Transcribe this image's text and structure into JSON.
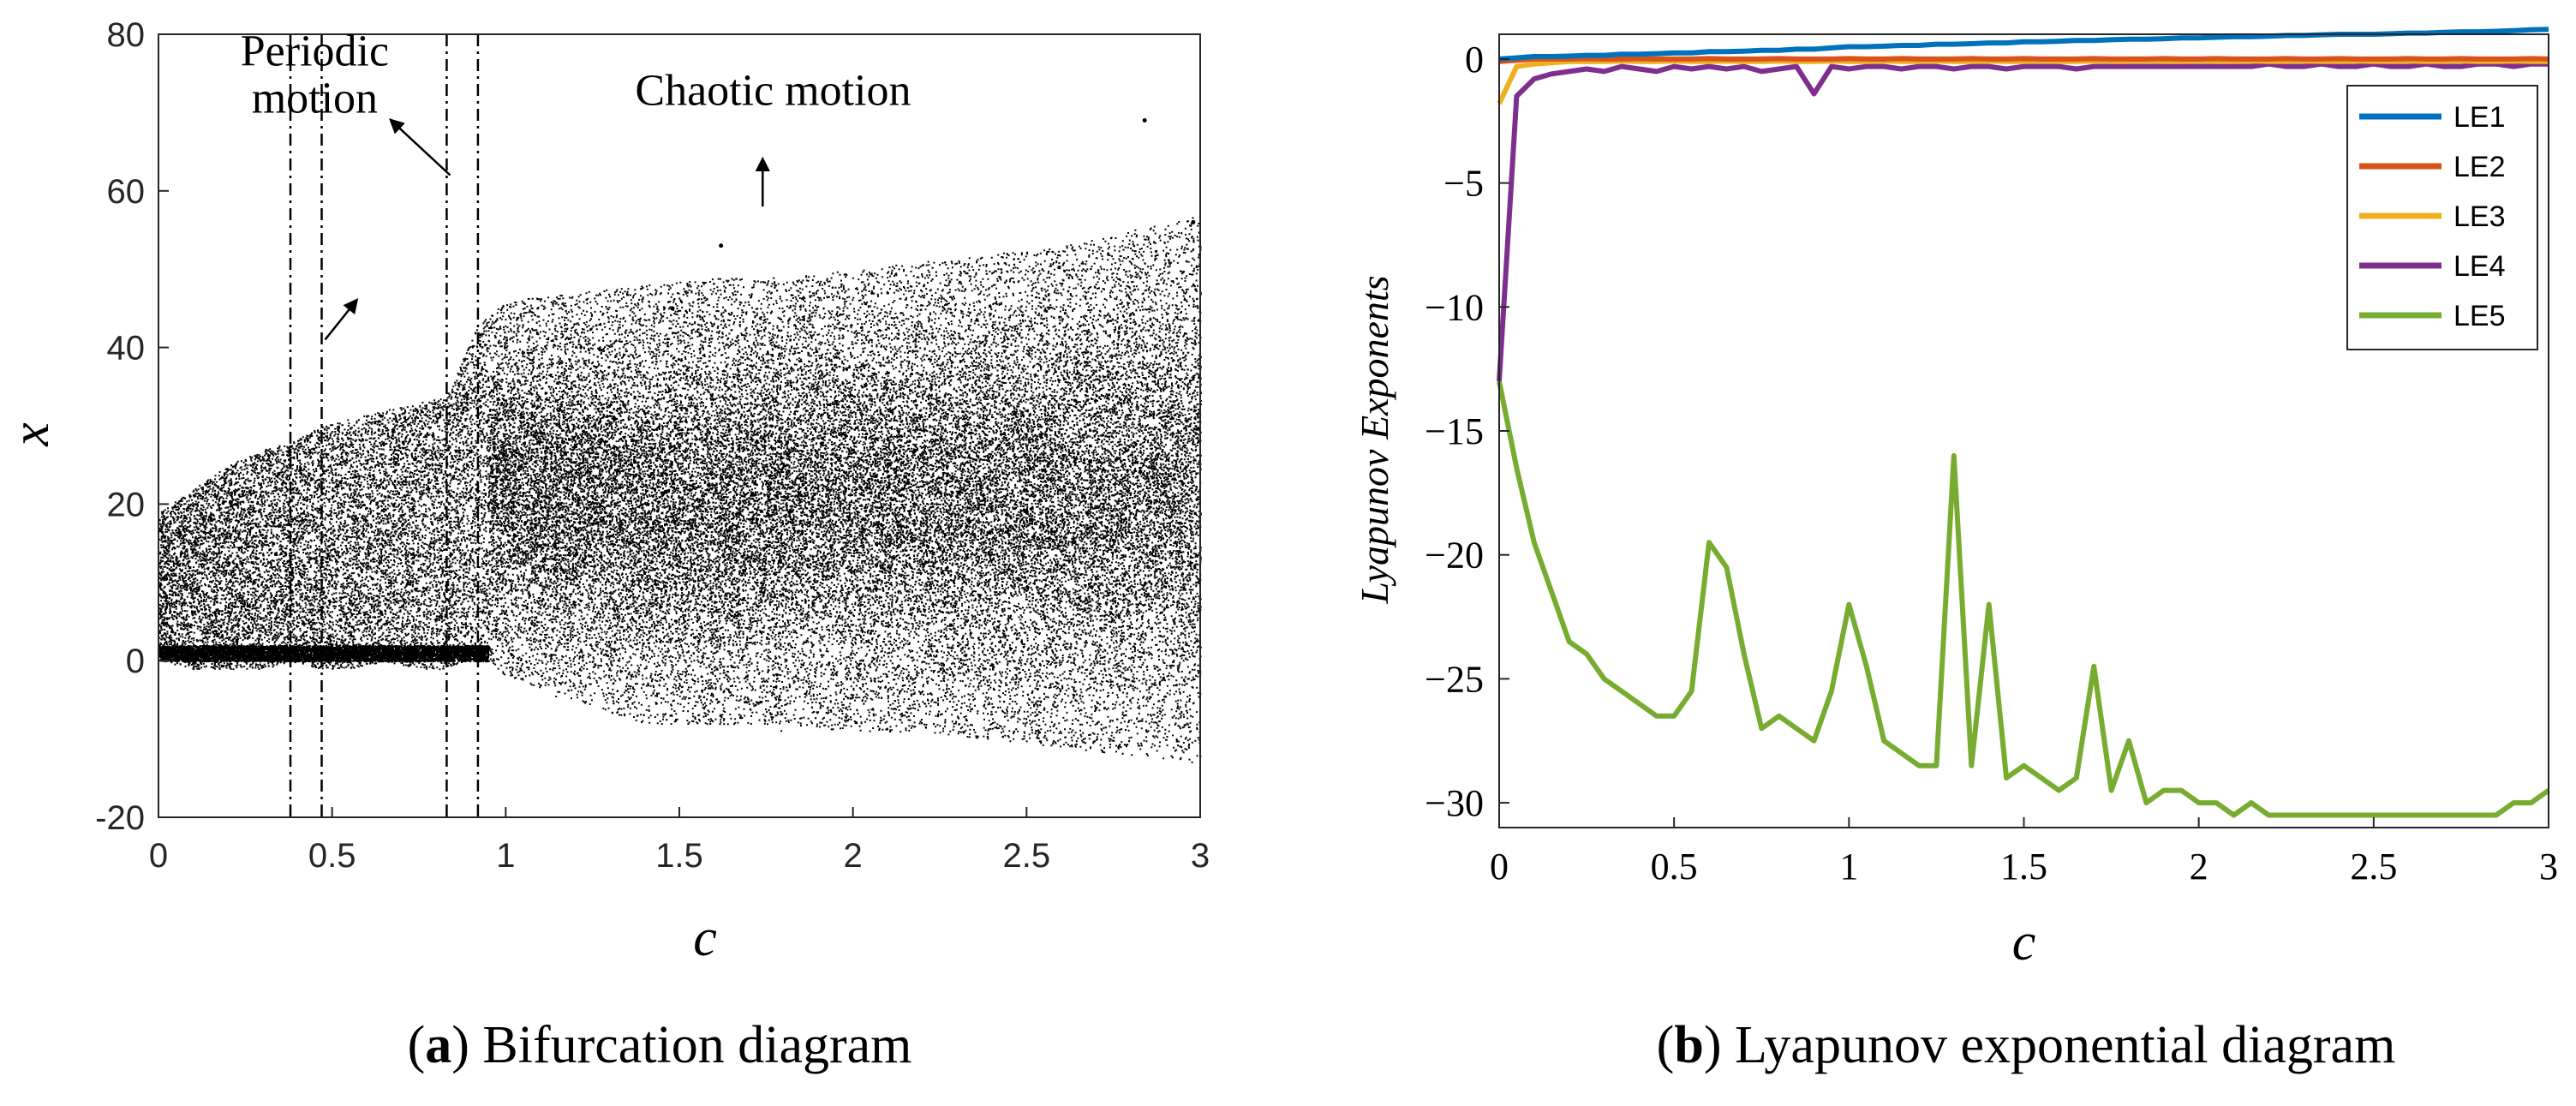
{
  "chart_data": [
    {
      "type": "scatter",
      "panel_label": "a",
      "caption": "Bifurcation diagram",
      "xlabel": "c",
      "ylabel": "x",
      "xlim": [
        0,
        3
      ],
      "ylim": [
        -20,
        80
      ],
      "xticks": [
        "0",
        "0.5",
        "1",
        "1.5",
        "2",
        "2.5",
        "3"
      ],
      "yticks": [
        "-20",
        "0",
        "20",
        "40",
        "60",
        "80"
      ],
      "grid": false,
      "regime_boundaries": [
        0.38,
        0.47,
        0.83,
        0.92
      ],
      "annotations": [
        {
          "text": "Periodic",
          "x": 0.45,
          "y": 76
        },
        {
          "text": "motion",
          "x": 0.45,
          "y": 70
        },
        {
          "text": "Chaotic motion",
          "x": 1.77,
          "y": 71
        }
      ],
      "series": [
        {
          "name": "attractor band (c, x-min, x-max)",
          "x": [
            0.0,
            0.1,
            0.2,
            0.3,
            0.38,
            0.47,
            0.55,
            0.65,
            0.75,
            0.83,
            0.92,
            1.0,
            1.2,
            1.4,
            1.6,
            1.8,
            2.0,
            2.2,
            2.4,
            2.6,
            2.8,
            3.0
          ],
          "min": [
            0,
            -1,
            -1,
            -1,
            0,
            -1,
            -1,
            0,
            -1,
            -1,
            1,
            -2,
            -5,
            -8,
            -8,
            -8,
            -9,
            -9,
            -10,
            -11,
            -12,
            -13
          ],
          "max": [
            19,
            22,
            25,
            27,
            28,
            30,
            31,
            32,
            33,
            34,
            43,
            46,
            47,
            48,
            49,
            49,
            50,
            51,
            52,
            53,
            55,
            57
          ]
        }
      ]
    },
    {
      "type": "line",
      "panel_label": "b",
      "caption": "Lyapunov exponential diagram",
      "xlabel": "c",
      "ylabel": "Lyapunov Exponents",
      "xlim": [
        0,
        3
      ],
      "ylim": [
        -31,
        1
      ],
      "xticks": [
        "0",
        "0.5",
        "1",
        "1.5",
        "2",
        "2.5",
        "3"
      ],
      "yticks": [
        "0",
        "−5",
        "−10",
        "−15",
        "−20",
        "−25",
        "−30"
      ],
      "grid": false,
      "legend_position": "top-right",
      "x": [
        0.0,
        0.05,
        0.1,
        0.15,
        0.2,
        0.25,
        0.3,
        0.35,
        0.4,
        0.45,
        0.5,
        0.55,
        0.6,
        0.65,
        0.7,
        0.75,
        0.8,
        0.85,
        0.9,
        0.95,
        1.0,
        1.05,
        1.1,
        1.15,
        1.2,
        1.25,
        1.3,
        1.35,
        1.4,
        1.45,
        1.5,
        1.55,
        1.6,
        1.65,
        1.7,
        1.75,
        1.8,
        1.85,
        1.9,
        1.95,
        2.0,
        2.05,
        2.1,
        2.15,
        2.2,
        2.25,
        2.3,
        2.35,
        2.4,
        2.45,
        2.5,
        2.55,
        2.6,
        2.65,
        2.7,
        2.75,
        2.8,
        2.85,
        2.9,
        2.95,
        3.0
      ],
      "series": [
        {
          "name": "LE1",
          "color": "#0072BD",
          "values": [
            0.0,
            0.05,
            0.1,
            0.1,
            0.12,
            0.15,
            0.15,
            0.2,
            0.2,
            0.22,
            0.25,
            0.25,
            0.3,
            0.3,
            0.32,
            0.35,
            0.35,
            0.4,
            0.4,
            0.45,
            0.5,
            0.5,
            0.52,
            0.55,
            0.55,
            0.6,
            0.6,
            0.62,
            0.65,
            0.65,
            0.7,
            0.7,
            0.72,
            0.75,
            0.75,
            0.78,
            0.8,
            0.8,
            0.82,
            0.85,
            0.85,
            0.88,
            0.9,
            0.9,
            0.92,
            0.95,
            0.95,
            0.98,
            1.0,
            1.0,
            1.0,
            1.02,
            1.05,
            1.05,
            1.08,
            1.1,
            1.1,
            1.12,
            1.15,
            1.18,
            1.2
          ]
        },
        {
          "name": "LE2",
          "color": "#D95319",
          "values": [
            -0.1,
            -0.05,
            0.0,
            0.0,
            0.0,
            0.02,
            0.0,
            0.0,
            0.02,
            0.0,
            0.0,
            0.0,
            0.02,
            0.0,
            0.0,
            0.0,
            0.02,
            0.0,
            0.0,
            0.0,
            0.02,
            0.0,
            0.0,
            0.02,
            0.0,
            0.0,
            0.0,
            0.02,
            0.0,
            0.0,
            0.02,
            0.0,
            0.0,
            0.0,
            0.02,
            0.0,
            0.0,
            0.0,
            0.02,
            0.0,
            0.0,
            0.02,
            0.0,
            0.0,
            0.0,
            0.02,
            0.0,
            0.0,
            0.02,
            0.0,
            0.0,
            0.0,
            0.02,
            0.0,
            0.0,
            0.02,
            0.0,
            0.0,
            0.0,
            0.02,
            0.0
          ]
        },
        {
          "name": "LE3",
          "color": "#EDB120",
          "values": [
            -1.8,
            -0.3,
            -0.2,
            -0.15,
            -0.1,
            -0.1,
            -0.1,
            -0.08,
            -0.1,
            -0.1,
            -0.08,
            -0.1,
            -0.1,
            -0.08,
            -0.1,
            -0.1,
            -0.08,
            -0.1,
            -0.1,
            -0.08,
            -0.1,
            -0.1,
            -0.08,
            -0.1,
            -0.1,
            -0.08,
            -0.1,
            -0.1,
            -0.08,
            -0.1,
            -0.1,
            -0.08,
            -0.1,
            -0.1,
            -0.08,
            -0.1,
            -0.1,
            -0.08,
            -0.1,
            -0.1,
            -0.08,
            -0.1,
            -0.1,
            -0.08,
            -0.1,
            -0.1,
            -0.08,
            -0.1,
            -0.1,
            -0.08,
            -0.1,
            -0.1,
            -0.08,
            -0.1,
            -0.1,
            -0.08,
            -0.1,
            -0.1,
            -0.08,
            -0.1,
            -0.1
          ]
        },
        {
          "name": "LE4",
          "color": "#7E2F8E",
          "values": [
            -13.0,
            -1.5,
            -0.8,
            -0.6,
            -0.5,
            -0.4,
            -0.5,
            -0.3,
            -0.4,
            -0.5,
            -0.3,
            -0.4,
            -0.3,
            -0.4,
            -0.3,
            -0.5,
            -0.4,
            -0.3,
            -1.4,
            -0.3,
            -0.4,
            -0.3,
            -0.3,
            -0.4,
            -0.3,
            -0.3,
            -0.4,
            -0.3,
            -0.3,
            -0.4,
            -0.3,
            -0.3,
            -0.3,
            -0.4,
            -0.3,
            -0.3,
            -0.3,
            -0.3,
            -0.3,
            -0.3,
            -0.3,
            -0.3,
            -0.3,
            -0.3,
            -0.2,
            -0.3,
            -0.3,
            -0.2,
            -0.3,
            -0.3,
            -0.2,
            -0.3,
            -0.3,
            -0.2,
            -0.3,
            -0.3,
            -0.2,
            -0.2,
            -0.3,
            -0.2,
            -0.2
          ]
        },
        {
          "name": "LE5",
          "color": "#77AC30",
          "values": [
            -13.0,
            -16.5,
            -19.5,
            -21.5,
            -23.5,
            -24.0,
            -25.0,
            -25.5,
            -26.0,
            -26.5,
            -26.5,
            -25.5,
            -19.5,
            -20.5,
            -24.0,
            -27.0,
            -26.5,
            -27.0,
            -27.5,
            -25.5,
            -22.0,
            -24.5,
            -27.5,
            -28.0,
            -28.5,
            -28.5,
            -16.0,
            -28.5,
            -22.0,
            -29.0,
            -28.5,
            -29.0,
            -29.5,
            -29.0,
            -24.5,
            -29.5,
            -27.5,
            -30.0,
            -29.5,
            -29.5,
            -30.0,
            -30.0,
            -30.5,
            -30.0,
            -30.5,
            -30.5,
            -30.5,
            -30.5,
            -30.5,
            -30.5,
            -30.5,
            -30.5,
            -30.5,
            -30.5,
            -30.5,
            -30.5,
            -30.5,
            -30.5,
            -30.0,
            -30.0,
            -29.5
          ]
        }
      ]
    }
  ]
}
